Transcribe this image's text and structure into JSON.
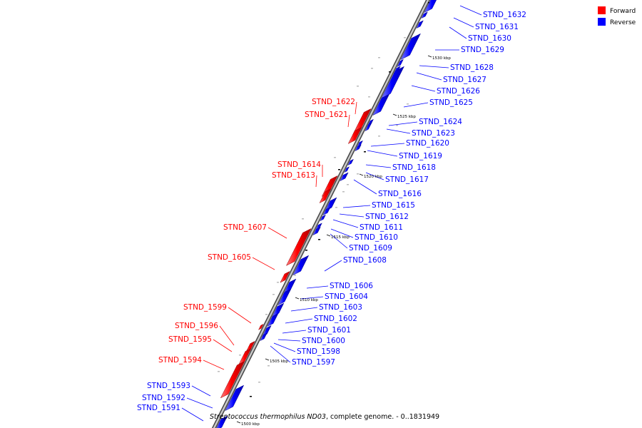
{
  "legend": {
    "forward": {
      "label": "Forward",
      "color": "#ff0000"
    },
    "reverse": {
      "label": "Reverse",
      "color": "#0000ff"
    }
  },
  "caption": {
    "organism": "Streptococcus thermophilus ND03",
    "rest": ", complete genome. - 0..1831949"
  },
  "scale_marks": [
    "1530 kbp",
    "1525 kbp",
    "1520 kbp",
    "1515 kbp",
    "1510 kbp",
    "1505 kbp",
    "1500 kbp"
  ],
  "forward_labels": [
    "STND_1622",
    "STND_1621",
    "STND_1614",
    "STND_1613",
    "STND_1607",
    "STND_1605",
    "STND_1599",
    "STND_1596",
    "STND_1595",
    "STND_1594"
  ],
  "reverse_labels_right": [
    "STND_1632",
    "STND_1631",
    "STND_1630",
    "STND_1629",
    "STND_1628",
    "STND_1627",
    "STND_1626",
    "STND_1625",
    "STND_1624",
    "STND_1623",
    "STND_1620",
    "STND_1619",
    "STND_1618",
    "STND_1617",
    "STND_1616",
    "STND_1615",
    "STND_1612",
    "STND_1611",
    "STND_1610",
    "STND_1609",
    "STND_1608",
    "STND_1606",
    "STND_1604",
    "STND_1603",
    "STND_1602",
    "STND_1601",
    "STND_1600",
    "STND_1598",
    "STND_1597"
  ],
  "reverse_labels_left": [
    "STND_1593",
    "STND_1592",
    "STND_1591"
  ],
  "colors": {
    "forward": "#ff0000",
    "reverse": "#0000ff",
    "backbone": "#8a8a8a"
  }
}
